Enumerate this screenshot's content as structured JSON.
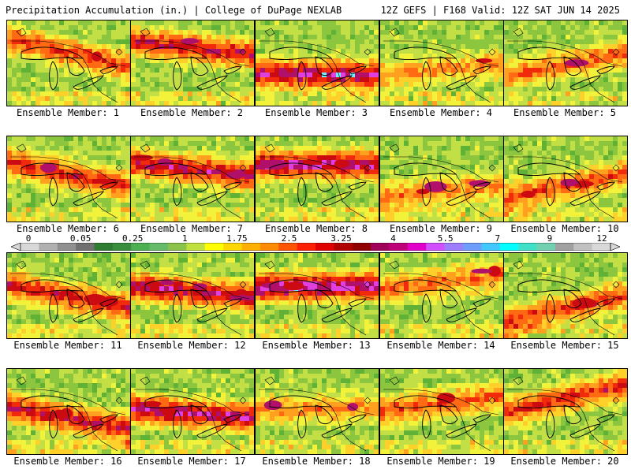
{
  "header": {
    "left": "Precipitation Accumulation (in.) | College of DuPage NEXLAB",
    "right": "12Z GEFS | F168 Valid: 12Z SAT JUN 14 2025"
  },
  "colorbar": {
    "tick_labels": [
      "0",
      "0.05",
      "0.25",
      "1",
      "1.75",
      "2.5",
      "3.25",
      "4",
      "5.5",
      "7",
      "9",
      "12"
    ],
    "colors": [
      "#d8d8d8",
      "#b0b0b0",
      "#909090",
      "#707070",
      "#2e7d32",
      "#388e3c",
      "#4caf50",
      "#66bb6a",
      "#8bc34a",
      "#c0e040",
      "#ffff00",
      "#ffd700",
      "#ffb000",
      "#ff8c00",
      "#ff5500",
      "#ff2000",
      "#e00000",
      "#b00000",
      "#900000",
      "#a0005a",
      "#c0007a",
      "#e000c8",
      "#d050ff",
      "#9c7cff",
      "#6e9cff",
      "#40c8ff",
      "#00ffff",
      "#40e0c8",
      "#70d0b0",
      "#a0a0a0",
      "#c0c0c0",
      "#d8d8d8"
    ]
  },
  "panels": [
    {
      "label": "Ensemble Member: 1"
    },
    {
      "label": "Ensemble Member: 2"
    },
    {
      "label": "Ensemble Member: 3"
    },
    {
      "label": "Ensemble Member: 4"
    },
    {
      "label": "Ensemble Member: 5"
    },
    {
      "label": "Ensemble Member: 6"
    },
    {
      "label": "Ensemble Member: 7"
    },
    {
      "label": "Ensemble Member: 8"
    },
    {
      "label": "Ensemble Member: 9"
    },
    {
      "label": "Ensemble Member: 10"
    },
    {
      "label": "Ensemble Member: 11"
    },
    {
      "label": "Ensemble Member: 12"
    },
    {
      "label": "Ensemble Member: 13"
    },
    {
      "label": "Ensemble Member: 14"
    },
    {
      "label": "Ensemble Member: 15"
    },
    {
      "label": "Ensemble Member: 16"
    },
    {
      "label": "Ensemble Member: 17"
    },
    {
      "label": "Ensemble Member: 18"
    },
    {
      "label": "Ensemble Member: 19"
    },
    {
      "label": "Ensemble Member: 20"
    }
  ]
}
